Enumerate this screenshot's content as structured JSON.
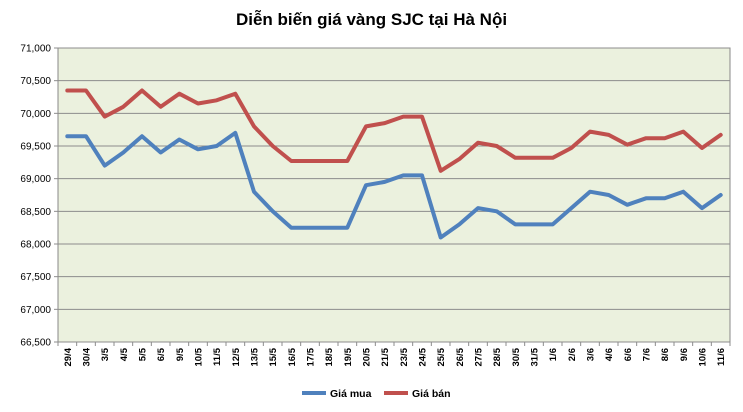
{
  "chart_data": {
    "type": "line",
    "title": "Diễn biến giá vàng SJC tại Hà Nội",
    "categories": [
      "29/4",
      "30/4",
      "3/5",
      "4/5",
      "5/5",
      "6/5",
      "9/5",
      "10/5",
      "11/5",
      "12/5",
      "13/5",
      "15/5",
      "16/5",
      "17/5",
      "18/5",
      "19/5",
      "20/5",
      "21/5",
      "23/5",
      "24/5",
      "25/5",
      "26/5",
      "27/5",
      "28/5",
      "30/5",
      "31/5",
      "1/6",
      "2/6",
      "3/6",
      "4/6",
      "6/6",
      "7/6",
      "8/6",
      "9/6",
      "10/6",
      "11/6"
    ],
    "series": [
      {
        "name": "Giá mua",
        "color": "#4f81bd",
        "values": [
          69650,
          69650,
          69200,
          69400,
          69650,
          69400,
          69600,
          69450,
          69500,
          69700,
          68800,
          68500,
          68250,
          68250,
          68250,
          68250,
          68900,
          68950,
          69050,
          69050,
          68100,
          68300,
          68550,
          68500,
          68300,
          68300,
          68300,
          68550,
          68800,
          68750,
          68600,
          68700,
          68700,
          68800,
          68550,
          68750
        ]
      },
      {
        "name": "Giá bán",
        "color": "#c0504d",
        "values": [
          70350,
          70350,
          69950,
          70100,
          70350,
          70100,
          70300,
          70150,
          70200,
          70300,
          69800,
          69500,
          69270,
          69270,
          69270,
          69270,
          69800,
          69850,
          69950,
          69950,
          69120,
          69300,
          69550,
          69500,
          69320,
          69320,
          69320,
          69470,
          69720,
          69670,
          69520,
          69620,
          69620,
          69720,
          69470,
          69670
        ]
      }
    ],
    "ylim": [
      66500,
      71000
    ],
    "yticks": [
      "66,500",
      "67,000",
      "67,500",
      "68,000",
      "68,500",
      "69,000",
      "69,500",
      "70,000",
      "70,500",
      "71,000"
    ],
    "grid": true,
    "legend_position": "bottom",
    "plot_background": "#ebf1de"
  }
}
